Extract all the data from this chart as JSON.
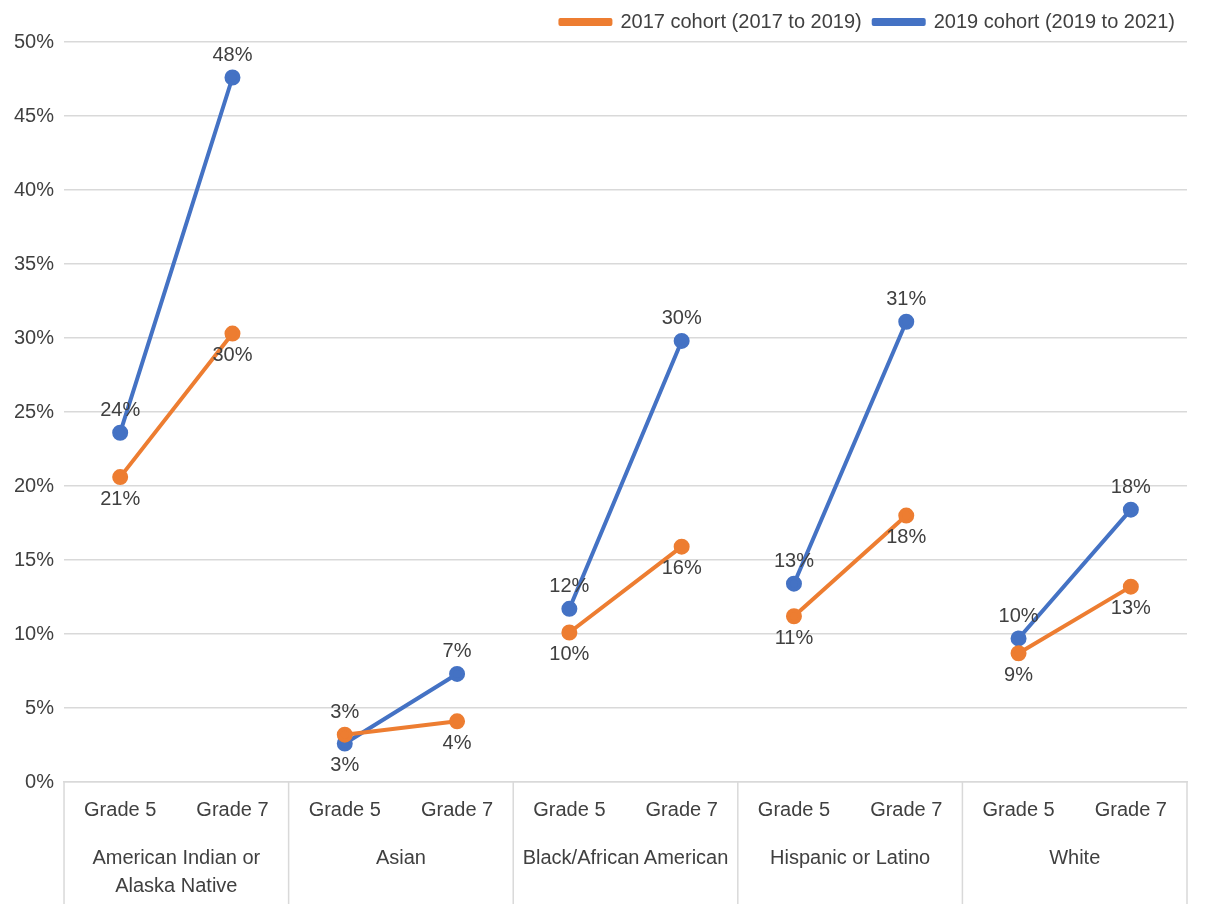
{
  "chart_data": {
    "type": "line",
    "categories": [
      "Grade 5",
      "Grade 7",
      "Grade 5",
      "Grade 7",
      "Grade 5",
      "Grade 7",
      "Grade 5",
      "Grade 7",
      "Grade 5",
      "Grade 7"
    ],
    "annotations": [
      "American Indian or Alaska Native",
      "Asian",
      "Black/African American",
      "Hispanic or Latino",
      "White"
    ],
    "series": [
      {
        "name": "2017 cohort (2017 to 2019)",
        "color": "#ed7d31",
        "values": [
          20.6,
          30.3,
          null,
          null,
          null,
          null,
          null,
          null,
          null,
          null
        ],
        "value_labels": [
          "21%",
          "30%",
          null,
          null,
          null,
          null,
          null,
          null,
          null,
          null
        ]
      },
      {
        "name": "2019 cohort (2019 to 2021)",
        "color": "#4472c4",
        "values": [
          23.6,
          47.6,
          null,
          null,
          null,
          null,
          null,
          null,
          null,
          null
        ],
        "value_labels": [
          "24%",
          "48%",
          null,
          null,
          null,
          null,
          null,
          null,
          null,
          null
        ]
      },
      {
        "color": "#ed7d31",
        "values": [
          null,
          null,
          3.2,
          4.1,
          null,
          null,
          null,
          null,
          null,
          null
        ],
        "value_labels": [
          null,
          null,
          "3%",
          "4%",
          null,
          null,
          null,
          null,
          null,
          null
        ]
      },
      {
        "color": "#4472c4",
        "values": [
          null,
          null,
          2.6,
          7.3,
          null,
          null,
          null,
          null,
          null,
          null
        ],
        "value_labels": [
          null,
          null,
          "3%",
          "7%",
          null,
          null,
          null,
          null,
          null,
          null
        ]
      },
      {
        "color": "#ed7d31",
        "values": [
          null,
          null,
          null,
          null,
          10.1,
          15.9,
          null,
          null,
          null,
          null
        ],
        "value_labels": [
          null,
          null,
          null,
          null,
          "10%",
          "16%",
          null,
          null,
          null,
          null
        ]
      },
      {
        "color": "#4472c4",
        "values": [
          null,
          null,
          null,
          null,
          11.7,
          29.8,
          null,
          null,
          null,
          null
        ],
        "value_labels": [
          null,
          null,
          null,
          null,
          "12%",
          "30%",
          null,
          null,
          null,
          null
        ]
      },
      {
        "color": "#ed7d31",
        "values": [
          null,
          null,
          null,
          null,
          null,
          null,
          11.2,
          18.0,
          null,
          null
        ],
        "value_labels": [
          null,
          null,
          null,
          null,
          null,
          null,
          "11%",
          "18%",
          null,
          null
        ]
      },
      {
        "color": "#4472c4",
        "values": [
          null,
          null,
          null,
          null,
          null,
          null,
          13.4,
          31.1,
          null,
          null
        ],
        "value_labels": [
          null,
          null,
          null,
          null,
          null,
          null,
          "13%",
          "31%",
          null,
          null
        ]
      },
      {
        "color": "#ed7d31",
        "values": [
          null,
          null,
          null,
          null,
          null,
          null,
          null,
          null,
          8.7,
          13.2
        ],
        "value_labels": [
          null,
          null,
          null,
          null,
          null,
          null,
          null,
          null,
          "9%",
          "13%"
        ]
      },
      {
        "color": "#4472c4",
        "values": [
          null,
          null,
          null,
          null,
          null,
          null,
          null,
          null,
          9.7,
          18.4
        ],
        "value_labels": [
          null,
          null,
          null,
          null,
          null,
          null,
          null,
          null,
          "10%",
          "18%"
        ]
      }
    ],
    "ylim": [
      0,
      50
    ],
    "yticks": [
      {
        "value": 0,
        "label": "0%"
      },
      {
        "value": 5,
        "label": "5%"
      },
      {
        "value": 10,
        "label": "10%"
      },
      {
        "value": 15,
        "label": "15%"
      },
      {
        "value": 20,
        "label": "20%"
      },
      {
        "value": 25,
        "label": "25%"
      },
      {
        "value": 30,
        "label": "30%"
      },
      {
        "value": 35,
        "label": "35%"
      },
      {
        "value": 40,
        "label": "40%"
      },
      {
        "value": 45,
        "label": "45%"
      },
      {
        "value": 50,
        "label": "50%"
      }
    ],
    "grid": "y",
    "legend": "top right",
    "marker": "circle",
    "line_style": "solid"
  }
}
